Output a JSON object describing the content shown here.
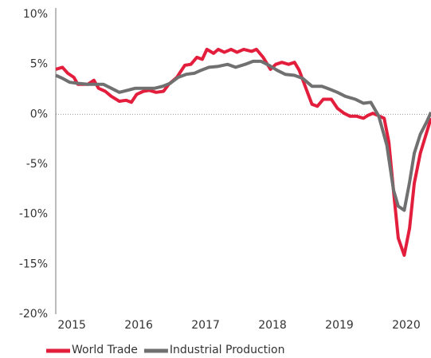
{
  "chart_data": {
    "type": "line",
    "xlim": [
      2014.76,
      2020.37
    ],
    "xticks": [
      2015,
      2016,
      2017,
      2018,
      2019,
      2020
    ],
    "ylim": [
      -20,
      10
    ],
    "yticks": [
      {
        "value": -20,
        "label": "-20%"
      },
      {
        "value": -15,
        "label": "-15%"
      },
      {
        "value": -10,
        "label": "-10%"
      },
      {
        "value": -5,
        "label": "-5%"
      },
      {
        "value": 0,
        "label": "0%"
      },
      {
        "value": 5,
        "label": "5%"
      },
      {
        "value": 10,
        "label": "10%"
      }
    ],
    "series": [
      {
        "name": "World Trade",
        "color": "#e31e3c",
        "x": [
          2014.76,
          2014.86,
          2014.94,
          2015.03,
          2015.09,
          2015.24,
          2015.33,
          2015.4,
          2015.5,
          2015.59,
          2015.71,
          2015.81,
          2015.89,
          2015.97,
          2016.07,
          2016.16,
          2016.26,
          2016.37,
          2016.45,
          2016.57,
          2016.69,
          2016.78,
          2016.87,
          2016.95,
          2017.02,
          2017.12,
          2017.19,
          2017.28,
          2017.38,
          2017.47,
          2017.57,
          2017.69,
          2017.76,
          2017.86,
          2017.97,
          2018.05,
          2018.14,
          2018.24,
          2018.33,
          2018.4,
          2018.5,
          2018.59,
          2018.67,
          2018.76,
          2018.88,
          2018.97,
          2019.07,
          2019.16,
          2019.26,
          2019.36,
          2019.43,
          2019.5,
          2019.57,
          2019.67,
          2019.74,
          2019.81,
          2019.88,
          2019.97,
          2020.05,
          2020.12,
          2020.21,
          2020.31,
          2020.37
        ],
        "values": [
          4.5,
          4.7,
          4.1,
          3.7,
          3.0,
          3.0,
          3.4,
          2.6,
          2.3,
          1.8,
          1.3,
          1.4,
          1.2,
          2.0,
          2.3,
          2.4,
          2.2,
          2.3,
          3.0,
          3.7,
          4.9,
          5.0,
          5.7,
          5.5,
          6.5,
          6.1,
          6.5,
          6.2,
          6.5,
          6.2,
          6.5,
          6.3,
          6.5,
          5.7,
          4.5,
          5.0,
          5.2,
          5.0,
          5.2,
          4.4,
          2.6,
          1.0,
          0.8,
          1.5,
          1.5,
          0.6,
          0.1,
          -0.2,
          -0.2,
          -0.4,
          -0.1,
          0.1,
          -0.1,
          -0.4,
          -2.8,
          -7.7,
          -12.4,
          -14.1,
          -11.4,
          -6.9,
          -3.9,
          -1.7,
          -0.4
        ]
      },
      {
        "name": "Industrial Production",
        "color": "#707070",
        "x": [
          2014.76,
          2014.86,
          2014.97,
          2015.09,
          2015.24,
          2015.36,
          2015.47,
          2015.59,
          2015.71,
          2015.83,
          2015.95,
          2016.09,
          2016.24,
          2016.36,
          2016.47,
          2016.59,
          2016.71,
          2016.83,
          2016.93,
          2017.05,
          2017.19,
          2017.33,
          2017.45,
          2017.59,
          2017.71,
          2017.83,
          2017.95,
          2018.07,
          2018.19,
          2018.33,
          2018.45,
          2018.59,
          2018.74,
          2018.86,
          2018.97,
          2019.09,
          2019.24,
          2019.36,
          2019.47,
          2019.59,
          2019.71,
          2019.81,
          2019.88,
          2019.97,
          2020.05,
          2020.12,
          2020.21,
          2020.31,
          2020.37
        ],
        "values": [
          3.9,
          3.6,
          3.2,
          3.1,
          3.0,
          3.0,
          3.0,
          2.6,
          2.2,
          2.4,
          2.6,
          2.6,
          2.6,
          2.8,
          3.1,
          3.7,
          4.0,
          4.1,
          4.4,
          4.7,
          4.8,
          5.0,
          4.7,
          5.0,
          5.3,
          5.3,
          4.9,
          4.4,
          4.0,
          3.9,
          3.6,
          2.8,
          2.8,
          2.5,
          2.2,
          1.8,
          1.5,
          1.1,
          1.2,
          -0.2,
          -3.1,
          -7.6,
          -9.2,
          -9.6,
          -6.8,
          -3.9,
          -2.0,
          -0.7,
          0.2
        ]
      }
    ]
  }
}
